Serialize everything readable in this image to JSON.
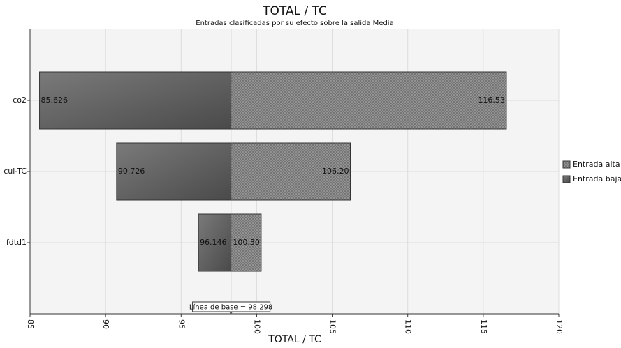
{
  "chart_data": {
    "type": "tornado",
    "title": "TOTAL / TC",
    "subtitle": "Entradas clasificadas por su efecto sobre la salida Media",
    "x_label": "TOTAL / TC",
    "categories": [
      "co2",
      "cui-TC",
      "fdtd1"
    ],
    "baseline": 98.298,
    "baseline_label": "Línea de base = 98.298",
    "series": [
      {
        "name": "Entrada alta",
        "color": "#8a8a8a",
        "side": "high",
        "values": [
          116.53,
          106.2,
          100.3
        ],
        "value_labels": [
          "116.53",
          "106.20",
          "100.30"
        ]
      },
      {
        "name": "Entrada baja",
        "color": "#5a5a5a",
        "side": "low",
        "values": [
          85.626,
          90.726,
          96.146
        ],
        "value_labels": [
          "85.626",
          "90.726",
          "96.146"
        ]
      }
    ],
    "xlim": [
      85,
      120
    ],
    "xticks": [
      85,
      90,
      95,
      100,
      105,
      110,
      115,
      120
    ],
    "grid": true
  }
}
